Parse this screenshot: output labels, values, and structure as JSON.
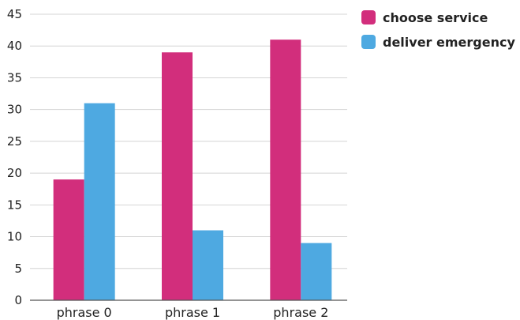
{
  "chart_data": {
    "type": "bar",
    "categories": [
      "phrase 0",
      "phrase 1",
      "phrase 2"
    ],
    "series": [
      {
        "name": "choose service",
        "values": [
          19,
          39,
          41
        ],
        "color": "#d22e7c"
      },
      {
        "name": "deliver emergency",
        "values": [
          31,
          11,
          9
        ],
        "color": "#4ea9e1"
      }
    ],
    "title": "",
    "xlabel": "",
    "ylabel": "",
    "ylim": [
      0,
      45
    ],
    "yticks": [
      0,
      5,
      10,
      15,
      20,
      25,
      30,
      35,
      40,
      45
    ],
    "grid": true,
    "legend_position": "top-right"
  }
}
